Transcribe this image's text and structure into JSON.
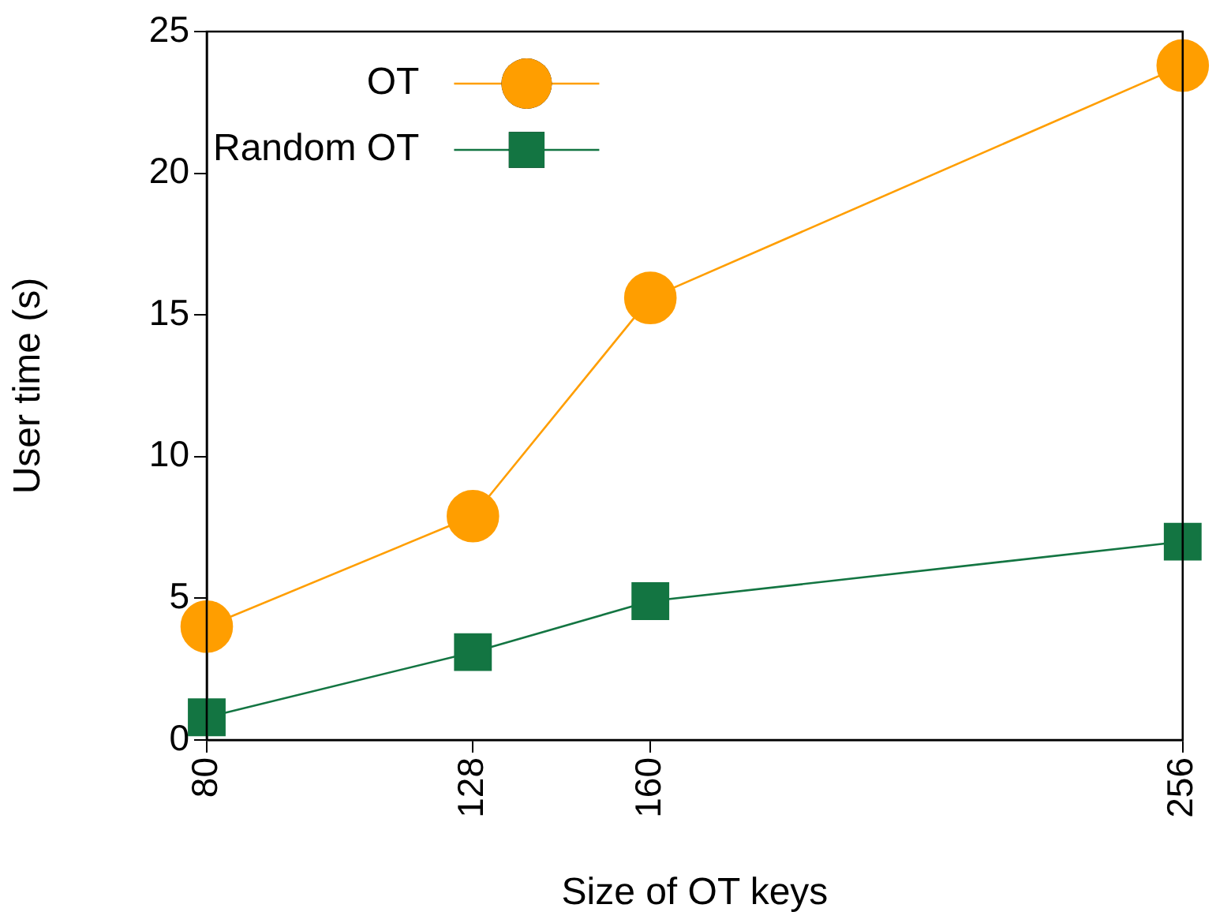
{
  "chart_data": {
    "type": "line",
    "xlabel": "Size of OT keys",
    "ylabel": "User time (s)",
    "x": [
      80,
      128,
      160,
      256
    ],
    "xlim": [
      80,
      256
    ],
    "xticks": [
      80,
      128,
      160,
      256
    ],
    "ylim": [
      0,
      25
    ],
    "yticks": [
      0,
      5,
      10,
      15,
      20,
      25
    ],
    "grid": false,
    "legend": "top left",
    "series": [
      {
        "name": "OT",
        "color": "#ff9e00",
        "marker": "circle",
        "values": [
          4.0,
          7.9,
          15.6,
          23.8
        ]
      },
      {
        "name": "Random OT",
        "color": "#137542",
        "marker": "square",
        "values": [
          0.8,
          3.1,
          4.9,
          7.0
        ]
      }
    ]
  }
}
